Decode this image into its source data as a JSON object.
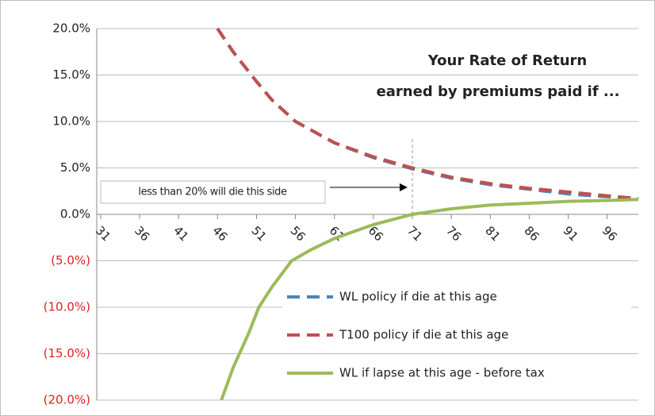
{
  "chart_data": {
    "type": "line",
    "title": "Your Rate of Return",
    "subtitle": "earned by premiums paid if ...",
    "annotation": "less than 20% will die this side",
    "marker_x": 71,
    "xlim": [
      30.5,
      100
    ],
    "xticks": [
      31,
      36,
      41,
      46,
      51,
      56,
      61,
      66,
      71,
      76,
      81,
      86,
      91,
      96
    ],
    "ylim": [
      -20,
      20
    ],
    "yticks": [
      {
        "value": -20,
        "label": "(20.0%)"
      },
      {
        "value": -15,
        "label": "(15.0%)"
      },
      {
        "value": -10,
        "label": "(10.0%)"
      },
      {
        "value": -5,
        "label": "(5.0%)"
      },
      {
        "value": 0,
        "label": "0.0%"
      },
      {
        "value": 5,
        "label": "5.0%"
      },
      {
        "value": 10,
        "label": "10.0%"
      },
      {
        "value": 15,
        "label": "15.0%"
      },
      {
        "value": 20,
        "label": "20.0%"
      }
    ],
    "negative_label_color": "#e02020",
    "grid": true,
    "legend": "lower right",
    "series": [
      {
        "name": "WL policy if die at this age",
        "color": "#4f81bd",
        "dash": true,
        "x": [
          46,
          48,
          51,
          53,
          56,
          61,
          66,
          71,
          76,
          81,
          86,
          91,
          96,
          100
        ],
        "values": [
          20,
          17.5,
          14.3,
          12.3,
          10,
          7.7,
          6.1,
          4.9,
          3.9,
          3.2,
          2.7,
          2.2,
          1.9,
          1.7
        ]
      },
      {
        "name": "T100 policy if die at this age",
        "color": "#c0504d",
        "dash": true,
        "x": [
          46,
          48,
          51,
          53,
          56,
          61,
          66,
          71,
          76,
          81,
          86,
          91,
          96,
          100
        ],
        "values": [
          20,
          17.5,
          14.3,
          12.3,
          10,
          7.7,
          6.2,
          5.0,
          4.0,
          3.3,
          2.8,
          2.4,
          2.0,
          1.7
        ]
      },
      {
        "name": "WL if lapse at this age - before tax",
        "color": "#9bbb59",
        "dash": false,
        "x": [
          46.5,
          48,
          50,
          51.3,
          53,
          55.5,
          58,
          61,
          66,
          71,
          76,
          81,
          86,
          91,
          96,
          100
        ],
        "values": [
          -20,
          -16.5,
          -12.8,
          -10,
          -7.8,
          -5,
          -3.8,
          -2.6,
          -1.1,
          0,
          0.6,
          1.0,
          1.2,
          1.4,
          1.5,
          1.6
        ]
      }
    ]
  }
}
